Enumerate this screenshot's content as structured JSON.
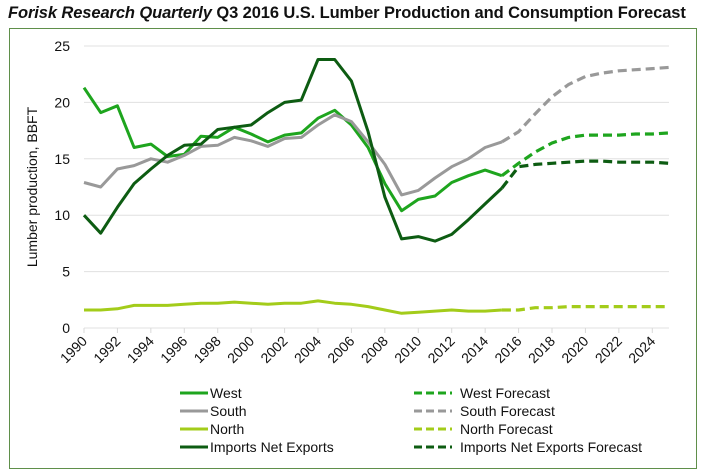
{
  "title": {
    "italic_part": "Forisk Research Quarterly",
    "rest": " Q3 2016 U.S. Lumber Production and Consumption Forecast"
  },
  "chart_data": {
    "type": "line",
    "title": "Forisk Research Quarterly Q3 2016 U.S. Lumber Production and Consumption Forecast",
    "xlabel": "",
    "ylabel": "Lumber production, BBFT",
    "ylim": [
      0,
      25
    ],
    "yticks": [
      0,
      5,
      10,
      15,
      20,
      25
    ],
    "xlim": [
      1990,
      2025
    ],
    "xticks": [
      1990,
      1992,
      1994,
      1996,
      1998,
      2000,
      2002,
      2004,
      2006,
      2008,
      2010,
      2012,
      2014,
      2016,
      2018,
      2020,
      2022,
      2024
    ],
    "grid": true,
    "legend_position": "bottom",
    "series": [
      {
        "name": "West",
        "color": "#1ea51e",
        "dashed": false,
        "x": [
          1990,
          1991,
          1992,
          1993,
          1994,
          1995,
          1996,
          1997,
          1998,
          1999,
          2000,
          2001,
          2002,
          2003,
          2004,
          2005,
          2006,
          2007,
          2008,
          2009,
          2010,
          2011,
          2012,
          2013,
          2014,
          2015
        ],
        "values": [
          21.3,
          19.1,
          19.7,
          16.0,
          16.3,
          15.2,
          15.4,
          17.0,
          16.9,
          17.8,
          17.2,
          16.5,
          17.1,
          17.3,
          18.6,
          19.3,
          18.0,
          16.0,
          12.8,
          10.4,
          11.4,
          11.7,
          12.9,
          13.5,
          14.0,
          13.5
        ]
      },
      {
        "name": "South",
        "color": "#999999",
        "dashed": false,
        "x": [
          1990,
          1991,
          1992,
          1993,
          1994,
          1995,
          1996,
          1997,
          1998,
          1999,
          2000,
          2001,
          2002,
          2003,
          2004,
          2005,
          2006,
          2007,
          2008,
          2009,
          2010,
          2011,
          2012,
          2013,
          2014,
          2015
        ],
        "values": [
          12.9,
          12.5,
          14.1,
          14.4,
          15.0,
          14.7,
          15.3,
          16.1,
          16.2,
          16.9,
          16.6,
          16.1,
          16.8,
          16.9,
          18.0,
          18.9,
          18.3,
          16.5,
          14.5,
          11.8,
          12.2,
          13.3,
          14.3,
          15.0,
          16.0,
          16.5
        ]
      },
      {
        "name": "North",
        "color": "#a3cc1a",
        "dashed": false,
        "x": [
          1990,
          1991,
          1992,
          1993,
          1994,
          1995,
          1996,
          1997,
          1998,
          1999,
          2000,
          2001,
          2002,
          2003,
          2004,
          2005,
          2006,
          2007,
          2008,
          2009,
          2010,
          2011,
          2012,
          2013,
          2014,
          2015
        ],
        "values": [
          1.6,
          1.6,
          1.7,
          2.0,
          2.0,
          2.0,
          2.1,
          2.2,
          2.2,
          2.3,
          2.2,
          2.1,
          2.2,
          2.2,
          2.4,
          2.2,
          2.1,
          1.9,
          1.6,
          1.3,
          1.4,
          1.5,
          1.6,
          1.5,
          1.5,
          1.6
        ]
      },
      {
        "name": "Imports Net Exports",
        "color": "#0d5c12",
        "dashed": false,
        "x": [
          1990,
          1991,
          1992,
          1993,
          1994,
          1995,
          1996,
          1997,
          1998,
          1999,
          2000,
          2001,
          2002,
          2003,
          2004,
          2005,
          2006,
          2007,
          2008,
          2009,
          2010,
          2011,
          2012,
          2013,
          2014,
          2015
        ],
        "values": [
          10.0,
          8.4,
          10.7,
          12.8,
          14.1,
          15.3,
          16.2,
          16.3,
          17.6,
          17.8,
          18.0,
          19.1,
          20.0,
          20.2,
          23.8,
          23.8,
          21.9,
          17.4,
          11.6,
          7.9,
          8.1,
          7.7,
          8.3,
          9.6,
          11.0,
          12.4
        ]
      },
      {
        "name": "West Forecast",
        "color": "#1ea51e",
        "dashed": true,
        "x": [
          2015,
          2016,
          2017,
          2018,
          2019,
          2020,
          2021,
          2022,
          2023,
          2024,
          2025
        ],
        "values": [
          13.5,
          14.6,
          15.6,
          16.4,
          16.9,
          17.1,
          17.1,
          17.1,
          17.2,
          17.2,
          17.3
        ]
      },
      {
        "name": "South Forecast",
        "color": "#999999",
        "dashed": true,
        "x": [
          2015,
          2016,
          2017,
          2018,
          2019,
          2020,
          2021,
          2022,
          2023,
          2024,
          2025
        ],
        "values": [
          16.5,
          17.4,
          19.0,
          20.5,
          21.6,
          22.3,
          22.6,
          22.8,
          22.9,
          23.0,
          23.1
        ]
      },
      {
        "name": "North Forecast",
        "color": "#a3cc1a",
        "dashed": true,
        "x": [
          2015,
          2016,
          2017,
          2018,
          2019,
          2020,
          2021,
          2022,
          2023,
          2024,
          2025
        ],
        "values": [
          1.6,
          1.6,
          1.8,
          1.8,
          1.9,
          1.9,
          1.9,
          1.9,
          1.9,
          1.9,
          1.9
        ]
      },
      {
        "name": "Imports Net Exports Forecast",
        "color": "#0d5c12",
        "dashed": true,
        "x": [
          2015,
          2016,
          2017,
          2018,
          2019,
          2020,
          2021,
          2022,
          2023,
          2024,
          2025
        ],
        "values": [
          12.4,
          14.3,
          14.5,
          14.6,
          14.7,
          14.8,
          14.8,
          14.7,
          14.7,
          14.7,
          14.6
        ]
      }
    ]
  }
}
